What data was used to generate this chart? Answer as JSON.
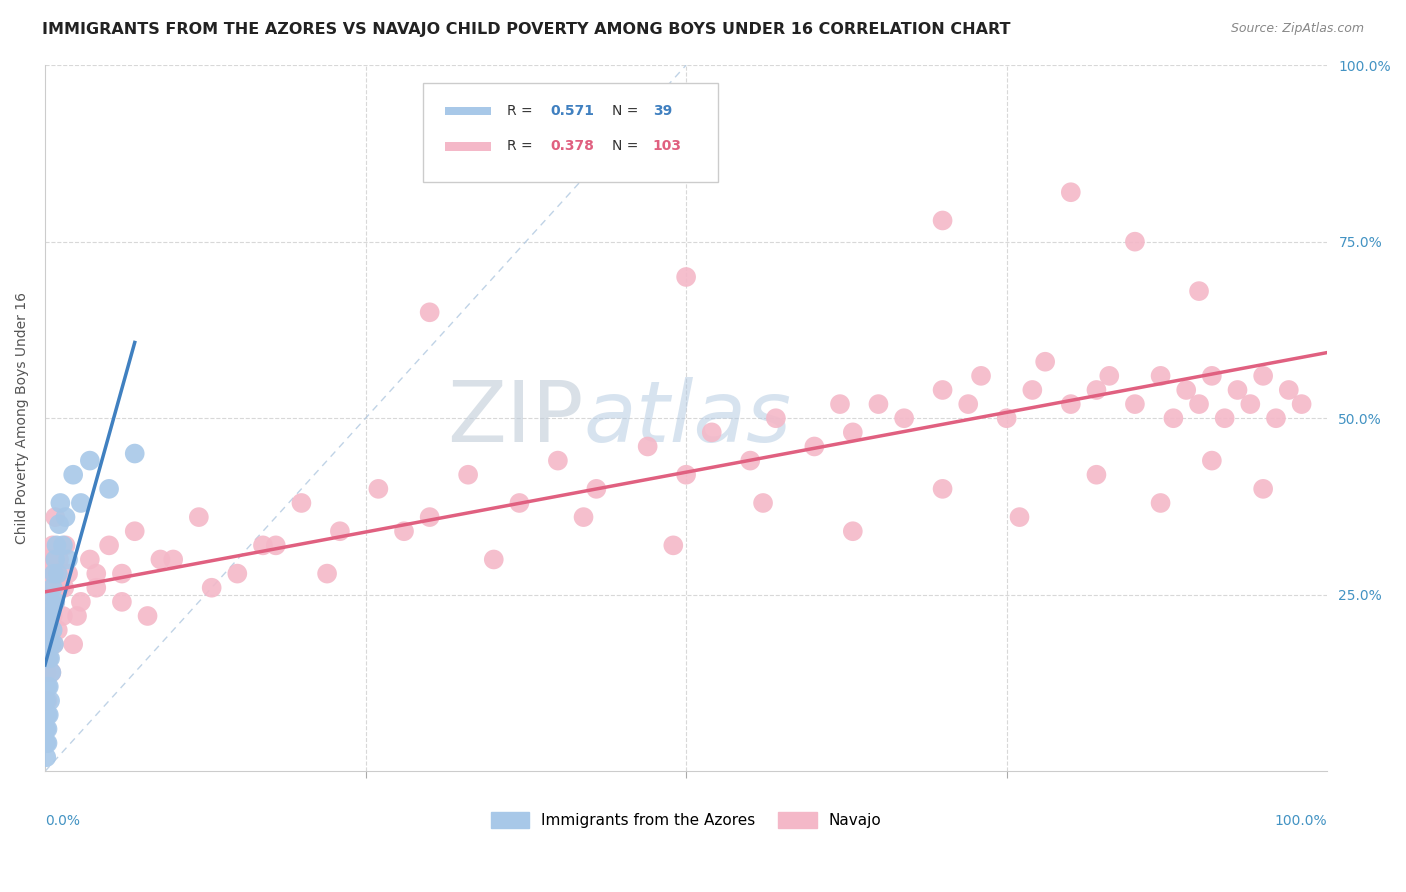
{
  "title": "IMMIGRANTS FROM THE AZORES VS NAVAJO CHILD POVERTY AMONG BOYS UNDER 16 CORRELATION CHART",
  "source": "Source: ZipAtlas.com",
  "ylabel": "Child Poverty Among Boys Under 16",
  "legend_label1": "Immigrants from the Azores",
  "legend_label2": "Navajo",
  "R1": 0.571,
  "N1": 39,
  "R2": 0.378,
  "N2": 103,
  "color_blue": "#a8c8e8",
  "color_blue_line": "#4080c0",
  "color_pink": "#f4b8c8",
  "color_pink_line": "#e06080",
  "color_blue_text": "#4080c0",
  "color_pink_text": "#e06080",
  "color_diag": "#b0c8e0",
  "watermark_color": "#c8d8e8",
  "background": "#ffffff",
  "gridcolor": "#d8d8d8",
  "blue_x": [
    0.001,
    0.001,
    0.001,
    0.001,
    0.001,
    0.002,
    0.002,
    0.002,
    0.002,
    0.002,
    0.002,
    0.003,
    0.003,
    0.003,
    0.003,
    0.004,
    0.004,
    0.004,
    0.005,
    0.005,
    0.005,
    0.006,
    0.006,
    0.007,
    0.007,
    0.008,
    0.008,
    0.009,
    0.01,
    0.011,
    0.012,
    0.014,
    0.016,
    0.018,
    0.022,
    0.028,
    0.035,
    0.05,
    0.07
  ],
  "blue_y": [
    0.02,
    0.04,
    0.06,
    0.08,
    0.1,
    0.04,
    0.06,
    0.08,
    0.12,
    0.16,
    0.2,
    0.08,
    0.12,
    0.16,
    0.22,
    0.1,
    0.16,
    0.22,
    0.14,
    0.18,
    0.24,
    0.2,
    0.26,
    0.18,
    0.28,
    0.24,
    0.3,
    0.32,
    0.28,
    0.35,
    0.38,
    0.32,
    0.36,
    0.3,
    0.42,
    0.38,
    0.44,
    0.4,
    0.45
  ],
  "pink_x": [
    0.001,
    0.001,
    0.002,
    0.002,
    0.002,
    0.003,
    0.003,
    0.004,
    0.004,
    0.005,
    0.005,
    0.006,
    0.006,
    0.007,
    0.008,
    0.008,
    0.009,
    0.01,
    0.011,
    0.012,
    0.014,
    0.016,
    0.018,
    0.022,
    0.028,
    0.035,
    0.04,
    0.05,
    0.06,
    0.07,
    0.08,
    0.1,
    0.12,
    0.15,
    0.18,
    0.2,
    0.23,
    0.26,
    0.3,
    0.33,
    0.37,
    0.4,
    0.43,
    0.47,
    0.5,
    0.52,
    0.55,
    0.57,
    0.6,
    0.62,
    0.63,
    0.65,
    0.67,
    0.7,
    0.72,
    0.73,
    0.75,
    0.77,
    0.78,
    0.8,
    0.82,
    0.83,
    0.85,
    0.87,
    0.88,
    0.89,
    0.9,
    0.91,
    0.92,
    0.93,
    0.94,
    0.95,
    0.96,
    0.97,
    0.98,
    0.003,
    0.007,
    0.015,
    0.025,
    0.04,
    0.06,
    0.09,
    0.13,
    0.17,
    0.22,
    0.28,
    0.35,
    0.42,
    0.49,
    0.56,
    0.63,
    0.7,
    0.76,
    0.82,
    0.87,
    0.91,
    0.95,
    0.3,
    0.5,
    0.7,
    0.8,
    0.85,
    0.9
  ],
  "pink_y": [
    0.14,
    0.22,
    0.1,
    0.18,
    0.28,
    0.16,
    0.24,
    0.2,
    0.3,
    0.14,
    0.26,
    0.22,
    0.32,
    0.18,
    0.24,
    0.36,
    0.28,
    0.2,
    0.3,
    0.26,
    0.22,
    0.32,
    0.28,
    0.18,
    0.24,
    0.3,
    0.26,
    0.32,
    0.28,
    0.34,
    0.22,
    0.3,
    0.36,
    0.28,
    0.32,
    0.38,
    0.34,
    0.4,
    0.36,
    0.42,
    0.38,
    0.44,
    0.4,
    0.46,
    0.42,
    0.48,
    0.44,
    0.5,
    0.46,
    0.52,
    0.48,
    0.52,
    0.5,
    0.54,
    0.52,
    0.56,
    0.5,
    0.54,
    0.58,
    0.52,
    0.54,
    0.56,
    0.52,
    0.56,
    0.5,
    0.54,
    0.52,
    0.56,
    0.5,
    0.54,
    0.52,
    0.56,
    0.5,
    0.54,
    0.52,
    0.3,
    0.28,
    0.26,
    0.22,
    0.28,
    0.24,
    0.3,
    0.26,
    0.32,
    0.28,
    0.34,
    0.3,
    0.36,
    0.32,
    0.38,
    0.34,
    0.4,
    0.36,
    0.42,
    0.38,
    0.44,
    0.4,
    0.65,
    0.7,
    0.78,
    0.82,
    0.75,
    0.68
  ]
}
